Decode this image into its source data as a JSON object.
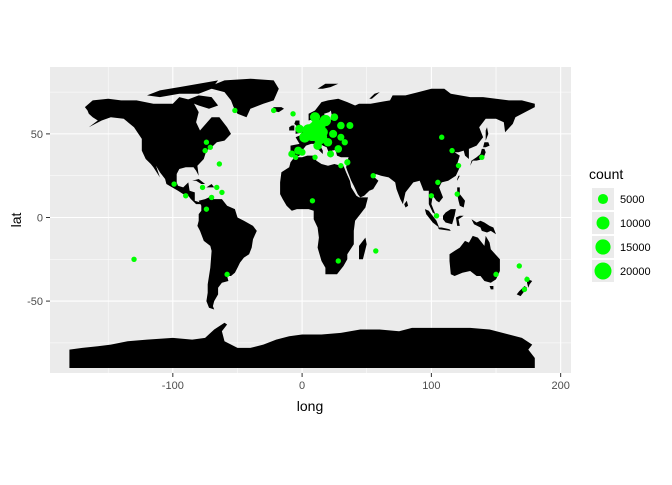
{
  "chart_data": {
    "type": "scatter",
    "title": "",
    "xlabel": "long",
    "ylabel": "lat",
    "xlim": [
      -195,
      208
    ],
    "ylim": [
      -93,
      90
    ],
    "x_ticks": [
      -100,
      0,
      100,
      200
    ],
    "x_tick_labels": [
      "-100",
      "0",
      "100",
      "200"
    ],
    "y_ticks": [
      -50,
      0,
      50
    ],
    "y_tick_labels": [
      "-50",
      "0",
      "50"
    ],
    "grid": true,
    "panel_background": "#ebebeb",
    "land_color": "#000000",
    "point_color": "#00ff00",
    "legend": {
      "title": "count",
      "position": "right",
      "entries": [
        {
          "label": "5000",
          "value": 5000
        },
        {
          "label": "10000",
          "value": 10000
        },
        {
          "label": "15000",
          "value": 15000
        },
        {
          "label": "20000",
          "value": 20000
        }
      ]
    },
    "points": [
      {
        "long": 10,
        "lat": 52,
        "count": 20000
      },
      {
        "long": 12,
        "lat": 54,
        "count": 16000
      },
      {
        "long": 8,
        "lat": 50,
        "count": 13000
      },
      {
        "long": 14,
        "lat": 48,
        "count": 12000
      },
      {
        "long": 5,
        "lat": 52,
        "count": 9000
      },
      {
        "long": 2,
        "lat": 48,
        "count": 6000
      },
      {
        "long": 18,
        "lat": 58,
        "count": 7000
      },
      {
        "long": 10,
        "lat": 60,
        "count": 5000
      },
      {
        "long": 16,
        "lat": 51,
        "count": 5000
      },
      {
        "long": -2,
        "lat": 53,
        "count": 3000
      },
      {
        "long": -3,
        "lat": 40,
        "count": 2500
      },
      {
        "long": 12,
        "lat": 43,
        "count": 3000
      },
      {
        "long": 20,
        "lat": 45,
        "count": 3000
      },
      {
        "long": 25,
        "lat": 60,
        "count": 2000
      },
      {
        "long": 24,
        "lat": 50,
        "count": 2500
      },
      {
        "long": 30,
        "lat": 55,
        "count": 2000
      },
      {
        "long": 28,
        "lat": 41,
        "count": 2000
      },
      {
        "long": 37,
        "lat": 55,
        "count": 1500
      },
      {
        "long": 35,
        "lat": 33,
        "count": 1000
      },
      {
        "long": 33,
        "lat": 45,
        "count": 1000
      },
      {
        "long": -8,
        "lat": 38,
        "count": 1500
      },
      {
        "long": 0,
        "lat": 39,
        "count": 1500
      },
      {
        "long": 22,
        "lat": 38,
        "count": 1500
      },
      {
        "long": 30,
        "lat": 48,
        "count": 1500
      },
      {
        "long": -7,
        "lat": 62,
        "count": 500
      },
      {
        "long": -22,
        "lat": 64,
        "count": 500
      },
      {
        "long": -5,
        "lat": 36,
        "count": 500
      },
      {
        "long": 10,
        "lat": 36,
        "count": 500
      },
      {
        "long": 30,
        "lat": 31,
        "count": 500
      },
      {
        "long": 8,
        "lat": 10,
        "count": 500
      },
      {
        "long": 28,
        "lat": -26,
        "count": 500
      },
      {
        "long": 57,
        "lat": -20,
        "count": 500
      },
      {
        "long": 55,
        "lat": 25,
        "count": 500
      },
      {
        "long": 108,
        "lat": 48,
        "count": 500
      },
      {
        "long": 116,
        "lat": 40,
        "count": 500
      },
      {
        "long": 121,
        "lat": 31,
        "count": 500
      },
      {
        "long": 139,
        "lat": 36,
        "count": 500
      },
      {
        "long": 105,
        "lat": 21,
        "count": 500
      },
      {
        "long": 104,
        "lat": 1,
        "count": 500
      },
      {
        "long": 100,
        "lat": 13,
        "count": 500
      },
      {
        "long": 120,
        "lat": 14,
        "count": 500
      },
      {
        "long": 150,
        "lat": -34,
        "count": 500
      },
      {
        "long": 174,
        "lat": -37,
        "count": 500
      },
      {
        "long": 172,
        "lat": -43,
        "count": 500
      },
      {
        "long": 168,
        "lat": -29,
        "count": 500
      },
      {
        "long": -74,
        "lat": 45,
        "count": 500
      },
      {
        "long": -75,
        "lat": 40,
        "count": 500
      },
      {
        "long": -71,
        "lat": 42,
        "count": 500
      },
      {
        "long": -66,
        "lat": 18,
        "count": 500
      },
      {
        "long": -64,
        "lat": 32,
        "count": 500
      },
      {
        "long": -77,
        "lat": 18,
        "count": 500
      },
      {
        "long": -62,
        "lat": 15,
        "count": 500
      },
      {
        "long": -70,
        "lat": 12,
        "count": 500
      },
      {
        "long": -90,
        "lat": 13,
        "count": 500
      },
      {
        "long": -99,
        "lat": 20,
        "count": 500
      },
      {
        "long": -74,
        "lat": 5,
        "count": 500
      },
      {
        "long": -58,
        "lat": -34,
        "count": 500
      },
      {
        "long": -130,
        "lat": -25,
        "count": 500
      },
      {
        "long": -52,
        "lat": 64,
        "count": 500
      }
    ]
  }
}
